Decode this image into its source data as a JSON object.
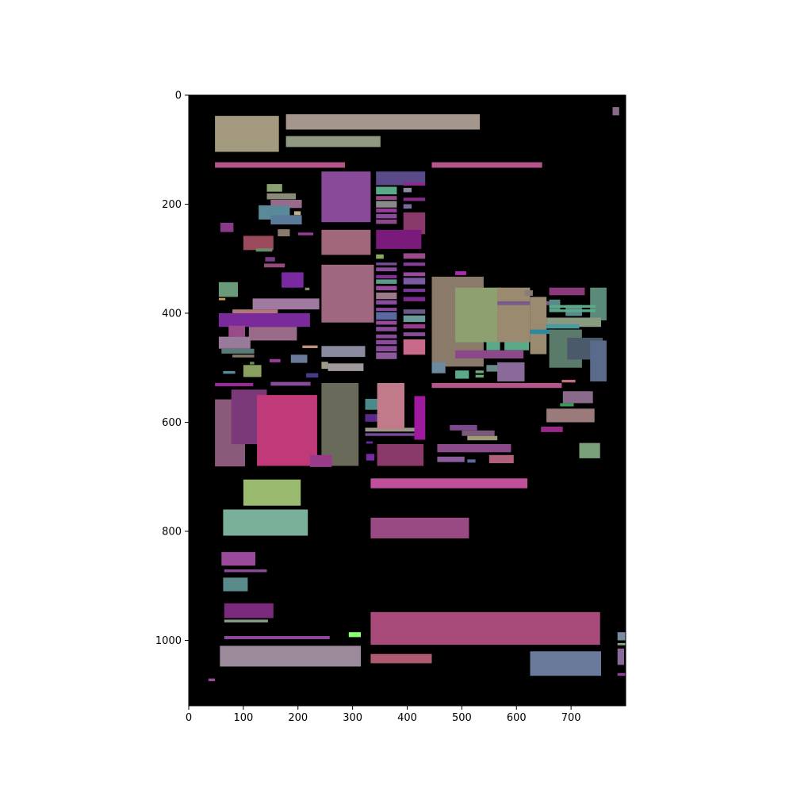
{
  "chart_data": {
    "type": "heatmap",
    "title": "",
    "xlabel": "",
    "ylabel": "",
    "xlim": [
      0,
      800
    ],
    "ylim": [
      1120,
      0
    ],
    "background": "#000000",
    "grid": false,
    "x_ticks": [
      0,
      100,
      200,
      300,
      400,
      500,
      600,
      700
    ],
    "y_ticks": [
      0,
      200,
      400,
      600,
      800,
      1000
    ],
    "rects": [
      {
        "x": 48,
        "y": 38,
        "w": 117,
        "h": 66,
        "color": "#a39a80"
      },
      {
        "x": 178,
        "y": 35,
        "w": 355,
        "h": 28,
        "color": "#a4968c"
      },
      {
        "x": 178,
        "y": 75,
        "w": 173,
        "h": 20,
        "color": "#8f9a80"
      },
      {
        "x": 48,
        "y": 123,
        "w": 238,
        "h": 10,
        "color": "#b5558c"
      },
      {
        "x": 445,
        "y": 123,
        "w": 202,
        "h": 10,
        "color": "#b5558c"
      },
      {
        "x": 776,
        "y": 22,
        "w": 12,
        "h": 15,
        "color": "#8a6a8a"
      },
      {
        "x": 243,
        "y": 140,
        "w": 90,
        "h": 93,
        "color": "#8a4a9a"
      },
      {
        "x": 343,
        "y": 140,
        "w": 90,
        "h": 25,
        "color": "#5a4a8a"
      },
      {
        "x": 143,
        "y": 163,
        "w": 28,
        "h": 14,
        "color": "#8aa070"
      },
      {
        "x": 143,
        "y": 180,
        "w": 53,
        "h": 11,
        "color": "#8a8a7a"
      },
      {
        "x": 150,
        "y": 192,
        "w": 57,
        "h": 15,
        "color": "#9a6a8a"
      },
      {
        "x": 128,
        "y": 202,
        "w": 57,
        "h": 26,
        "color": "#5a8a9a"
      },
      {
        "x": 150,
        "y": 220,
        "w": 57,
        "h": 17,
        "color": "#5a7a9a"
      },
      {
        "x": 193,
        "y": 213,
        "w": 12,
        "h": 7,
        "color": "#c0b090"
      },
      {
        "x": 58,
        "y": 234,
        "w": 24,
        "h": 17,
        "color": "#8a3a8a"
      },
      {
        "x": 163,
        "y": 246,
        "w": 22,
        "h": 13,
        "color": "#8a7a6a"
      },
      {
        "x": 200,
        "y": 252,
        "w": 28,
        "h": 5,
        "color": "#9a3a9a"
      },
      {
        "x": 100,
        "y": 258,
        "w": 55,
        "h": 26,
        "color": "#9a4a5a"
      },
      {
        "x": 123,
        "y": 281,
        "w": 30,
        "h": 6,
        "color": "#6a8a6a"
      },
      {
        "x": 243,
        "y": 247,
        "w": 90,
        "h": 46,
        "color": "#a0687a"
      },
      {
        "x": 140,
        "y": 297,
        "w": 18,
        "h": 8,
        "color": "#7a3a8a"
      },
      {
        "x": 138,
        "y": 309,
        "w": 38,
        "h": 7,
        "color": "#9a4a7a"
      },
      {
        "x": 170,
        "y": 325,
        "w": 40,
        "h": 28,
        "color": "#7a2aa0"
      },
      {
        "x": 213,
        "y": 353,
        "w": 8,
        "h": 5,
        "color": "#8a8a6a"
      },
      {
        "x": 55,
        "y": 343,
        "w": 35,
        "h": 27,
        "color": "#6a9a7a"
      },
      {
        "x": 55,
        "y": 372,
        "w": 12,
        "h": 4,
        "color": "#c0a050"
      },
      {
        "x": 117,
        "y": 373,
        "w": 122,
        "h": 20,
        "color": "#a07aa0"
      },
      {
        "x": 80,
        "y": 393,
        "w": 83,
        "h": 7,
        "color": "#b0787a"
      },
      {
        "x": 55,
        "y": 400,
        "w": 167,
        "h": 25,
        "color": "#7a2a9a"
      },
      {
        "x": 73,
        "y": 423,
        "w": 30,
        "h": 20,
        "color": "#9a4a8a"
      },
      {
        "x": 110,
        "y": 425,
        "w": 88,
        "h": 25,
        "color": "#9a6a8a"
      },
      {
        "x": 55,
        "y": 443,
        "w": 58,
        "h": 22,
        "color": "#9a7a9a"
      },
      {
        "x": 60,
        "y": 465,
        "w": 60,
        "h": 9,
        "color": "#5a7a7a"
      },
      {
        "x": 80,
        "y": 476,
        "w": 40,
        "h": 5,
        "color": "#8a7a6a"
      },
      {
        "x": 208,
        "y": 459,
        "w": 28,
        "h": 5,
        "color": "#c0907a"
      },
      {
        "x": 187,
        "y": 476,
        "w": 30,
        "h": 15,
        "color": "#6a7a9a"
      },
      {
        "x": 148,
        "y": 484,
        "w": 20,
        "h": 6,
        "color": "#9a3a9a"
      },
      {
        "x": 112,
        "y": 489,
        "w": 8,
        "h": 5,
        "color": "#6a8a5a"
      },
      {
        "x": 100,
        "y": 495,
        "w": 33,
        "h": 22,
        "color": "#8aa060"
      },
      {
        "x": 63,
        "y": 506,
        "w": 22,
        "h": 5,
        "color": "#5a8a9a"
      },
      {
        "x": 243,
        "y": 311,
        "w": 96,
        "h": 106,
        "color": "#a06880"
      },
      {
        "x": 243,
        "y": 460,
        "w": 80,
        "h": 20,
        "color": "#8a8aa0"
      },
      {
        "x": 243,
        "y": 489,
        "w": 12,
        "h": 13,
        "color": "#a09a8a"
      },
      {
        "x": 255,
        "y": 492,
        "w": 65,
        "h": 14,
        "color": "#a09a9a"
      },
      {
        "x": 215,
        "y": 510,
        "w": 22,
        "h": 8,
        "color": "#4a3a8a"
      },
      {
        "x": 48,
        "y": 528,
        "w": 70,
        "h": 6,
        "color": "#9a2a9a"
      },
      {
        "x": 150,
        "y": 526,
        "w": 73,
        "h": 7,
        "color": "#8a4a9a"
      },
      {
        "x": 343,
        "y": 168,
        "w": 38,
        "h": 14,
        "color": "#5aaa8a"
      },
      {
        "x": 343,
        "y": 185,
        "w": 38,
        "h": 7,
        "color": "#9a4a8a"
      },
      {
        "x": 343,
        "y": 194,
        "w": 38,
        "h": 12,
        "color": "#8a8a8a"
      },
      {
        "x": 343,
        "y": 208,
        "w": 38,
        "h": 7,
        "color": "#9a3a9a"
      },
      {
        "x": 343,
        "y": 218,
        "w": 38,
        "h": 8,
        "color": "#8a4a9a"
      },
      {
        "x": 343,
        "y": 228,
        "w": 38,
        "h": 8,
        "color": "#8a4a8a"
      },
      {
        "x": 393,
        "y": 160,
        "w": 40,
        "h": 6,
        "color": "#8a2a8a"
      },
      {
        "x": 393,
        "y": 170,
        "w": 15,
        "h": 8,
        "color": "#8a8aa0"
      },
      {
        "x": 393,
        "y": 188,
        "w": 40,
        "h": 6,
        "color": "#8a2a8a"
      },
      {
        "x": 393,
        "y": 200,
        "w": 15,
        "h": 8,
        "color": "#7a6aa0"
      },
      {
        "x": 393,
        "y": 215,
        "w": 40,
        "h": 40,
        "color": "#8a3a6a"
      },
      {
        "x": 343,
        "y": 247,
        "w": 83,
        "h": 35,
        "color": "#7a1a7a"
      },
      {
        "x": 343,
        "y": 292,
        "w": 14,
        "h": 8,
        "color": "#8aaa60"
      },
      {
        "x": 393,
        "y": 290,
        "w": 40,
        "h": 10,
        "color": "#9a4a8a"
      },
      {
        "x": 343,
        "y": 307,
        "w": 38,
        "h": 5,
        "color": "#7a4a9a"
      },
      {
        "x": 343,
        "y": 316,
        "w": 38,
        "h": 7,
        "color": "#8a4a9a"
      },
      {
        "x": 343,
        "y": 330,
        "w": 38,
        "h": 6,
        "color": "#8a2a9a"
      },
      {
        "x": 343,
        "y": 338,
        "w": 38,
        "h": 8,
        "color": "#5a9a8a"
      },
      {
        "x": 343,
        "y": 350,
        "w": 38,
        "h": 8,
        "color": "#9a4a9a"
      },
      {
        "x": 343,
        "y": 362,
        "w": 38,
        "h": 12,
        "color": "#9a7a8a"
      },
      {
        "x": 343,
        "y": 376,
        "w": 38,
        "h": 8,
        "color": "#8a4a9a"
      },
      {
        "x": 393,
        "y": 307,
        "w": 40,
        "h": 6,
        "color": "#8a3a9a"
      },
      {
        "x": 393,
        "y": 325,
        "w": 40,
        "h": 7,
        "color": "#9a4a9a"
      },
      {
        "x": 393,
        "y": 335,
        "w": 40,
        "h": 12,
        "color": "#7a5aa0"
      },
      {
        "x": 393,
        "y": 355,
        "w": 40,
        "h": 6,
        "color": "#7a3a9a"
      },
      {
        "x": 393,
        "y": 370,
        "w": 40,
        "h": 8,
        "color": "#7a2a8a"
      },
      {
        "x": 343,
        "y": 390,
        "w": 38,
        "h": 6,
        "color": "#8a4a9a"
      },
      {
        "x": 343,
        "y": 398,
        "w": 38,
        "h": 14,
        "color": "#5a6aa0"
      },
      {
        "x": 343,
        "y": 414,
        "w": 38,
        "h": 7,
        "color": "#9a4a9a"
      },
      {
        "x": 343,
        "y": 425,
        "w": 38,
        "h": 8,
        "color": "#8a4a9a"
      },
      {
        "x": 343,
        "y": 439,
        "w": 38,
        "h": 7,
        "color": "#8a4a9a"
      },
      {
        "x": 343,
        "y": 449,
        "w": 38,
        "h": 8,
        "color": "#8a4a9a"
      },
      {
        "x": 343,
        "y": 460,
        "w": 38,
        "h": 10,
        "color": "#8a4a9a"
      },
      {
        "x": 343,
        "y": 472,
        "w": 38,
        "h": 12,
        "color": "#8a5a9a"
      },
      {
        "x": 393,
        "y": 393,
        "w": 40,
        "h": 8,
        "color": "#6a5a8a"
      },
      {
        "x": 393,
        "y": 404,
        "w": 40,
        "h": 12,
        "color": "#6a9a9a"
      },
      {
        "x": 393,
        "y": 420,
        "w": 40,
        "h": 8,
        "color": "#9a3a8a"
      },
      {
        "x": 393,
        "y": 435,
        "w": 40,
        "h": 7,
        "color": "#8a4a9a"
      },
      {
        "x": 393,
        "y": 448,
        "w": 40,
        "h": 28,
        "color": "#c86a8a"
      },
      {
        "x": 445,
        "y": 333,
        "w": 95,
        "h": 165,
        "color": "#8a7a6a"
      },
      {
        "x": 488,
        "y": 323,
        "w": 20,
        "h": 7,
        "color": "#b02ab0"
      },
      {
        "x": 488,
        "y": 353,
        "w": 85,
        "h": 100,
        "color": "#8fa070"
      },
      {
        "x": 565,
        "y": 353,
        "w": 60,
        "h": 100,
        "color": "#9a8a70"
      },
      {
        "x": 565,
        "y": 378,
        "w": 112,
        "h": 7,
        "color": "#7a5a8a"
      },
      {
        "x": 615,
        "y": 358,
        "w": 15,
        "h": 10,
        "color": "#8a7a7a"
      },
      {
        "x": 625,
        "y": 370,
        "w": 30,
        "h": 105,
        "color": "#9a8a70"
      },
      {
        "x": 545,
        "y": 453,
        "w": 25,
        "h": 15,
        "color": "#5aaa8a"
      },
      {
        "x": 578,
        "y": 453,
        "w": 45,
        "h": 15,
        "color": "#5aaa8a"
      },
      {
        "x": 488,
        "y": 468,
        "w": 125,
        "h": 15,
        "color": "#8a4a8a"
      },
      {
        "x": 445,
        "y": 490,
        "w": 25,
        "h": 20,
        "color": "#6a8aa0"
      },
      {
        "x": 488,
        "y": 505,
        "w": 25,
        "h": 15,
        "color": "#5aaa8a"
      },
      {
        "x": 525,
        "y": 505,
        "w": 15,
        "h": 5,
        "color": "#6aaa7a"
      },
      {
        "x": 525,
        "y": 513,
        "w": 15,
        "h": 5,
        "color": "#6aaa7a"
      },
      {
        "x": 545,
        "y": 495,
        "w": 65,
        "h": 12,
        "color": "#6a8a8a"
      },
      {
        "x": 565,
        "y": 490,
        "w": 50,
        "h": 35,
        "color": "#8a6a9a"
      },
      {
        "x": 660,
        "y": 353,
        "w": 65,
        "h": 14,
        "color": "#8a3a7a"
      },
      {
        "x": 735,
        "y": 353,
        "w": 30,
        "h": 60,
        "color": "#5a8a7a"
      },
      {
        "x": 660,
        "y": 375,
        "w": 20,
        "h": 20,
        "color": "#5a8a8a"
      },
      {
        "x": 690,
        "y": 385,
        "w": 30,
        "h": 20,
        "color": "#5a8a8a"
      },
      {
        "x": 660,
        "y": 385,
        "w": 85,
        "h": 5,
        "color": "#5aaa8a"
      },
      {
        "x": 660,
        "y": 393,
        "w": 85,
        "h": 5,
        "color": "#5aaa8a"
      },
      {
        "x": 655,
        "y": 408,
        "w": 100,
        "h": 17,
        "color": "#8a9a80"
      },
      {
        "x": 655,
        "y": 420,
        "w": 60,
        "h": 8,
        "color": "#4a9aa0"
      },
      {
        "x": 625,
        "y": 430,
        "w": 45,
        "h": 8,
        "color": "#2a8aa0"
      },
      {
        "x": 660,
        "y": 430,
        "w": 60,
        "h": 70,
        "color": "#5a7a6a"
      },
      {
        "x": 693,
        "y": 445,
        "w": 65,
        "h": 40,
        "color": "#4a5a6a"
      },
      {
        "x": 735,
        "y": 450,
        "w": 30,
        "h": 75,
        "color": "#5a6a8a"
      },
      {
        "x": 683,
        "y": 522,
        "w": 25,
        "h": 5,
        "color": "#c0707a"
      },
      {
        "x": 445,
        "y": 528,
        "w": 238,
        "h": 9,
        "color": "#b5558c"
      },
      {
        "x": 243,
        "y": 528,
        "w": 68,
        "h": 152,
        "color": "#6a6a5a"
      },
      {
        "x": 323,
        "y": 557,
        "w": 45,
        "h": 20,
        "color": "#4a8a8a"
      },
      {
        "x": 323,
        "y": 585,
        "w": 50,
        "h": 14,
        "color": "#5a2a8a"
      },
      {
        "x": 323,
        "y": 610,
        "w": 95,
        "h": 7,
        "color": "#9a9a8a"
      },
      {
        "x": 323,
        "y": 620,
        "w": 90,
        "h": 5,
        "color": "#7a4a9a"
      },
      {
        "x": 325,
        "y": 635,
        "w": 12,
        "h": 4,
        "color": "#6a2aa0"
      },
      {
        "x": 325,
        "y": 658,
        "w": 15,
        "h": 12,
        "color": "#7a2aa0"
      },
      {
        "x": 345,
        "y": 528,
        "w": 50,
        "h": 85,
        "color": "#c07a8a"
      },
      {
        "x": 413,
        "y": 552,
        "w": 20,
        "h": 80,
        "color": "#a01aa0"
      },
      {
        "x": 345,
        "y": 640,
        "w": 85,
        "h": 40,
        "color": "#8a3a6a"
      },
      {
        "x": 478,
        "y": 605,
        "w": 50,
        "h": 10,
        "color": "#7a4a8a"
      },
      {
        "x": 500,
        "y": 615,
        "w": 60,
        "h": 10,
        "color": "#7a5a7a"
      },
      {
        "x": 510,
        "y": 625,
        "w": 55,
        "h": 8,
        "color": "#a09a7a"
      },
      {
        "x": 455,
        "y": 640,
        "w": 135,
        "h": 15,
        "color": "#8a4a8a"
      },
      {
        "x": 455,
        "y": 663,
        "w": 50,
        "h": 10,
        "color": "#8a5a9a"
      },
      {
        "x": 510,
        "y": 668,
        "w": 15,
        "h": 6,
        "color": "#5a6aa0"
      },
      {
        "x": 550,
        "y": 660,
        "w": 45,
        "h": 15,
        "color": "#b0607a"
      },
      {
        "x": 685,
        "y": 543,
        "w": 55,
        "h": 22,
        "color": "#8a6a8a"
      },
      {
        "x": 680,
        "y": 565,
        "w": 25,
        "h": 6,
        "color": "#3a9a5a"
      },
      {
        "x": 655,
        "y": 575,
        "w": 88,
        "h": 25,
        "color": "#9a7a7a"
      },
      {
        "x": 645,
        "y": 608,
        "w": 40,
        "h": 10,
        "color": "#9a2a8a"
      },
      {
        "x": 715,
        "y": 638,
        "w": 38,
        "h": 28,
        "color": "#7aa07a"
      },
      {
        "x": 48,
        "y": 558,
        "w": 55,
        "h": 123,
        "color": "#8a5a7a"
      },
      {
        "x": 78,
        "y": 540,
        "w": 65,
        "h": 100,
        "color": "#7a3a7a"
      },
      {
        "x": 125,
        "y": 550,
        "w": 110,
        "h": 130,
        "color": "#c03a7a"
      },
      {
        "x": 222,
        "y": 660,
        "w": 40,
        "h": 22,
        "color": "#9a3a8a"
      },
      {
        "x": 100,
        "y": 705,
        "w": 105,
        "h": 48,
        "color": "#9aba70"
      },
      {
        "x": 63,
        "y": 760,
        "w": 155,
        "h": 48,
        "color": "#7ab09a"
      },
      {
        "x": 333,
        "y": 703,
        "w": 287,
        "h": 18,
        "color": "#c0509a"
      },
      {
        "x": 333,
        "y": 775,
        "w": 180,
        "h": 38,
        "color": "#9a4a82"
      },
      {
        "x": 60,
        "y": 838,
        "w": 62,
        "h": 25,
        "color": "#9a4a9a"
      },
      {
        "x": 65,
        "y": 870,
        "w": 78,
        "h": 5,
        "color": "#8a4a9a"
      },
      {
        "x": 63,
        "y": 885,
        "w": 45,
        "h": 25,
        "color": "#5a8a8a"
      },
      {
        "x": 65,
        "y": 932,
        "w": 90,
        "h": 27,
        "color": "#7a2a7a"
      },
      {
        "x": 65,
        "y": 962,
        "w": 80,
        "h": 5,
        "color": "#8aa08a"
      },
      {
        "x": 65,
        "y": 992,
        "w": 193,
        "h": 6,
        "color": "#8a4a9a"
      },
      {
        "x": 293,
        "y": 985,
        "w": 22,
        "h": 9,
        "color": "#8aff70"
      },
      {
        "x": 333,
        "y": 948,
        "w": 420,
        "h": 60,
        "color": "#a84a7a"
      },
      {
        "x": 57,
        "y": 1010,
        "w": 258,
        "h": 38,
        "color": "#9a8a9a"
      },
      {
        "x": 333,
        "y": 1025,
        "w": 112,
        "h": 17,
        "color": "#b05a70"
      },
      {
        "x": 625,
        "y": 1020,
        "w": 130,
        "h": 45,
        "color": "#6a7a9a"
      },
      {
        "x": 36,
        "y": 1070,
        "w": 12,
        "h": 5,
        "color": "#9a4a9a"
      },
      {
        "x": 785,
        "y": 985,
        "w": 15,
        "h": 15,
        "color": "#7a8aa0"
      },
      {
        "x": 785,
        "y": 1005,
        "w": 15,
        "h": 4,
        "color": "#8aaa7a"
      },
      {
        "x": 785,
        "y": 1015,
        "w": 12,
        "h": 30,
        "color": "#8a6a9a"
      },
      {
        "x": 785,
        "y": 1060,
        "w": 15,
        "h": 5,
        "color": "#9a3aa0"
      }
    ]
  }
}
